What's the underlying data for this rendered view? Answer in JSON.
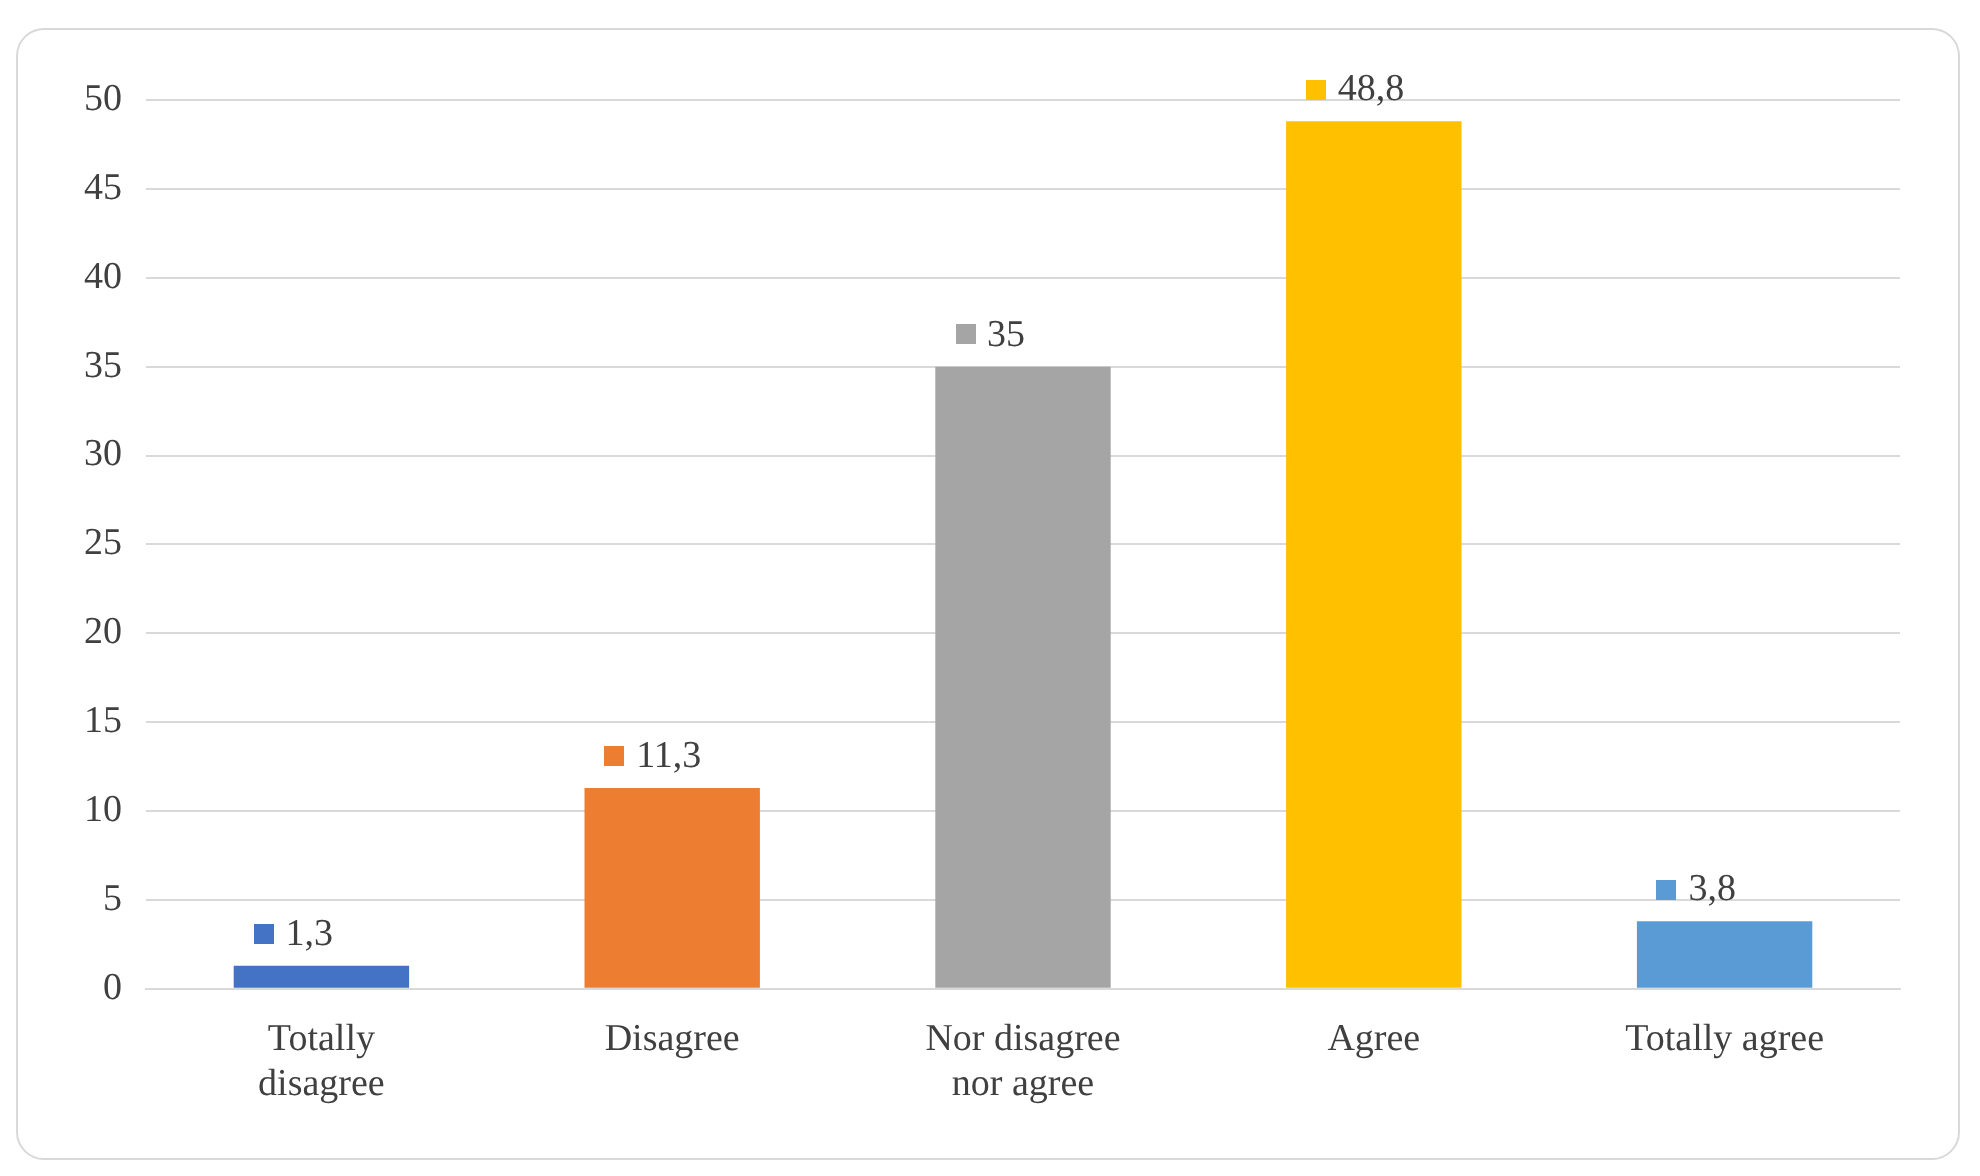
{
  "chart_data": {
    "type": "bar",
    "categories": [
      "Totally disagree",
      "Disagree",
      "Nor disagree nor agree",
      "Agree",
      "Totally agree"
    ],
    "values": [
      1.3,
      11.3,
      35,
      48.8,
      3.8
    ],
    "colors": [
      "#4472c4",
      "#ed7d31",
      "#a5a5a5",
      "#ffc000",
      "#5b9bd5"
    ],
    "value_labels": [
      "1,3",
      "11,3",
      "35",
      "48,8",
      "3,8"
    ],
    "ylim": [
      0,
      50
    ],
    "yticks": [
      0,
      5,
      10,
      15,
      20,
      25,
      30,
      35,
      40,
      45,
      50
    ],
    "grid": "y",
    "legend": false
  }
}
